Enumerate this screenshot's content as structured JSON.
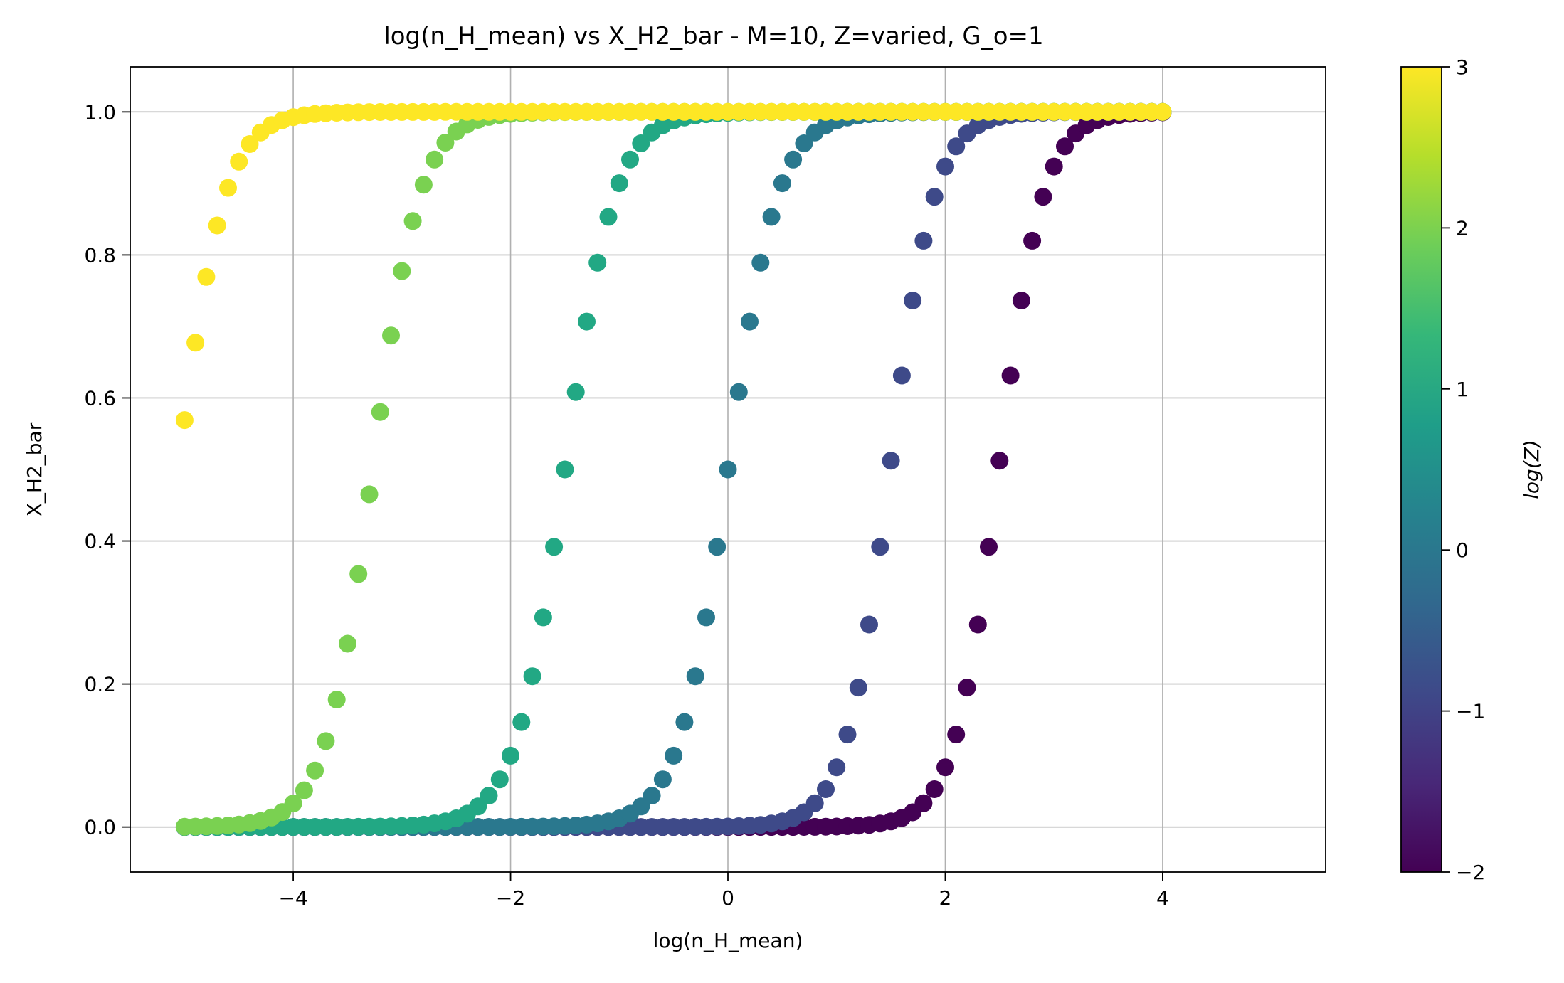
{
  "chart_data": {
    "type": "scatter",
    "title": "log(n_H_mean) vs X_H2_bar - M=10, Z=varied, G_o=1",
    "xlabel": "log(n_H_mean)",
    "ylabel": "X_H2_bar",
    "xlim": [
      -5.5,
      5.5
    ],
    "ylim": [
      -0.063,
      1.063
    ],
    "xticks": [
      -4,
      -2,
      0,
      2,
      4
    ],
    "xtick_labels": [
      "−4",
      "−2",
      "0",
      "2",
      "4"
    ],
    "yticks": [
      0.0,
      0.2,
      0.4,
      0.6,
      0.8,
      1.0
    ],
    "ytick_labels": [
      "0.0",
      "0.2",
      "0.4",
      "0.6",
      "0.8",
      "1.0"
    ],
    "grid": true,
    "colorbar": {
      "label": "log(Z)",
      "range": [
        -2,
        3
      ],
      "ticks": [
        -2,
        -1,
        0,
        1,
        2,
        3
      ],
      "tick_labels": [
        "−2",
        "−1",
        "0",
        "1",
        "2",
        "3"
      ],
      "colormap": "viridis",
      "colors": [
        "#440154",
        "#482878",
        "#3e4989",
        "#31688e",
        "#26828e",
        "#1f9e89",
        "#35b779",
        "#6ece58",
        "#b5de2b",
        "#fde725"
      ]
    },
    "x_range": [
      -5,
      4
    ],
    "points_per_series": 91,
    "series": [
      {
        "logZ": -2,
        "color": "#440154",
        "midpoint": 2.49,
        "width": 0.9
      },
      {
        "logZ": -1,
        "color": "#3e4a89",
        "midpoint": 1.49,
        "width": 0.9
      },
      {
        "logZ": 0,
        "color": "#2a788e",
        "midpoint": 0.0,
        "width": 1.0
      },
      {
        "logZ": 1,
        "color": "#22a884",
        "midpoint": -1.5,
        "width": 1.0
      },
      {
        "logZ": 2,
        "color": "#7ad151",
        "midpoint": -3.27,
        "width": 0.95
      },
      {
        "logZ": 3,
        "color": "#fde725",
        "midpoint": -5.06,
        "width": 0.95
      }
    ]
  }
}
